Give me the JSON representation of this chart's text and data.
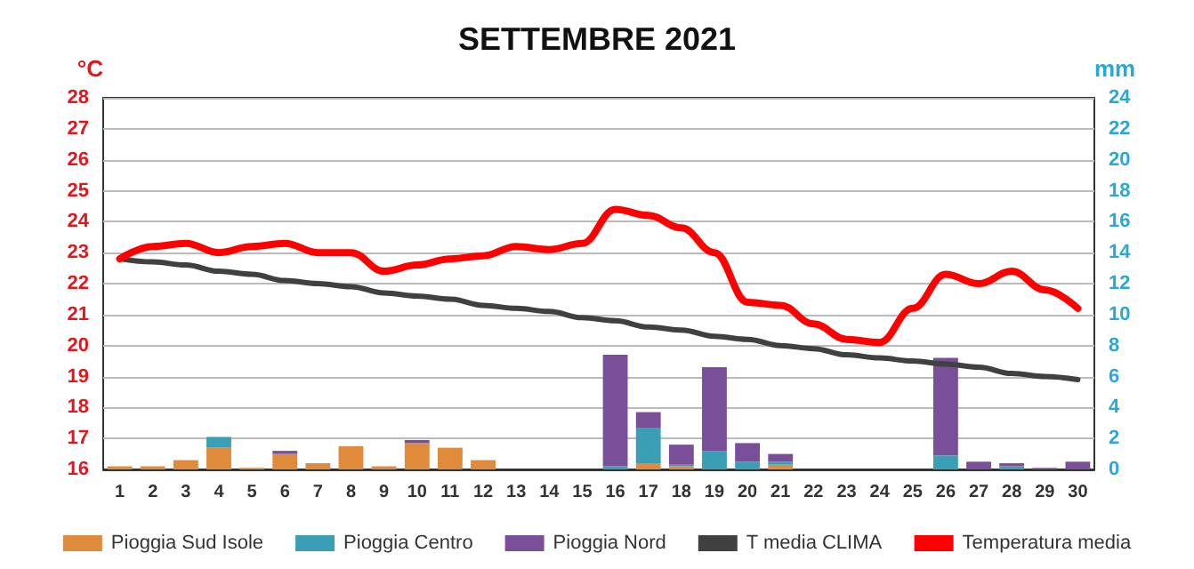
{
  "chart_data": {
    "type": "bar",
    "title": "SETTEMBRE 2021",
    "ylabel": "°C",
    "y2label": "mm",
    "stacked": true,
    "grid": "y",
    "legend": "bottom",
    "marker": "none",
    "categories": [
      "1",
      "2",
      "3",
      "4",
      "5",
      "6",
      "7",
      "8",
      "9",
      "10",
      "11",
      "12",
      "13",
      "14",
      "15",
      "16",
      "17",
      "18",
      "19",
      "20",
      "21",
      "22",
      "23",
      "24",
      "25",
      "26",
      "27",
      "28",
      "29",
      "30"
    ],
    "ylim": [
      16,
      28
    ],
    "yticks": [
      16,
      17,
      18,
      19,
      20,
      21,
      22,
      23,
      24,
      25,
      26,
      27,
      28
    ],
    "y2lim": [
      0,
      24
    ],
    "y2ticks": [
      0,
      2,
      4,
      6,
      8,
      10,
      12,
      14,
      16,
      18,
      20,
      22,
      24
    ],
    "series": [
      {
        "name": "Pioggia Sud Isole",
        "axis": "y2",
        "color": "#e08a3c",
        "values": [
          0.2,
          0.2,
          0.6,
          1.4,
          0.1,
          1.0,
          0.4,
          1.5,
          0.2,
          1.7,
          1.4,
          0.6,
          0,
          0,
          0,
          0,
          0.4,
          0.2,
          0,
          0,
          0.3,
          0,
          0,
          0,
          0,
          0,
          0,
          0,
          0,
          0
        ]
      },
      {
        "name": "Pioggia Centro",
        "axis": "y2",
        "color": "#3a9fb5",
        "values": [
          0,
          0,
          0,
          0.7,
          0,
          0,
          0,
          0,
          0,
          0,
          0,
          0,
          0,
          0,
          0,
          0.2,
          2.3,
          0.1,
          1.2,
          0.5,
          0.2,
          0,
          0,
          0,
          0,
          0.9,
          0,
          0.2,
          0,
          0
        ]
      },
      {
        "name": "Pioggia Nord",
        "axis": "y2",
        "color": "#7a4f9a",
        "values": [
          0,
          0,
          0,
          0,
          0,
          0.2,
          0,
          0,
          0,
          0.2,
          0,
          0,
          0,
          0,
          0,
          7.2,
          1.0,
          1.3,
          5.4,
          1.2,
          0.5,
          0,
          0,
          0,
          0,
          6.3,
          0.5,
          0.2,
          0.1,
          0.5
        ]
      },
      {
        "name": "T media CLIMA",
        "type": "line",
        "axis": "y",
        "color": "#404040",
        "values": [
          22.8,
          22.7,
          22.6,
          22.4,
          22.3,
          22.1,
          22.0,
          21.9,
          21.7,
          21.6,
          21.5,
          21.3,
          21.2,
          21.1,
          20.9,
          20.8,
          20.6,
          20.5,
          20.3,
          20.2,
          20.0,
          19.9,
          19.7,
          19.6,
          19.5,
          19.4,
          19.3,
          19.1,
          19.0,
          18.9
        ]
      },
      {
        "name": "Temperatura media",
        "type": "line",
        "axis": "y",
        "color": "#ff0000",
        "values": [
          22.8,
          23.2,
          23.3,
          23.0,
          23.2,
          23.3,
          23.0,
          23.0,
          22.4,
          22.6,
          22.8,
          22.9,
          23.2,
          23.1,
          23.3,
          24.4,
          24.2,
          23.8,
          23.0,
          21.4,
          21.3,
          20.7,
          20.2,
          20.1,
          21.2,
          22.3,
          22.0,
          22.4,
          21.8,
          21.2
        ]
      }
    ]
  }
}
